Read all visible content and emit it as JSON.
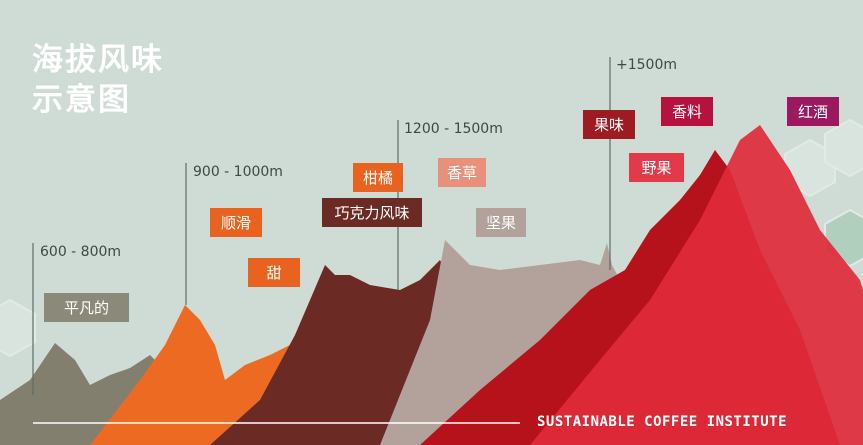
{
  "title": [
    "海拔风味",
    "示意图"
  ],
  "altitudes": [
    "600 - 800m",
    "900 - 1000m",
    "1200 - 1500m",
    "+1500m"
  ],
  "flavors": [
    "平凡的",
    "顺滑",
    "甜",
    "柑橘",
    "巧克力风味",
    "香草",
    "坚果",
    "果味",
    "香料",
    "野果",
    "红酒"
  ],
  "footer": "SUSTAINABLE COFFEE INSTITUTE"
}
